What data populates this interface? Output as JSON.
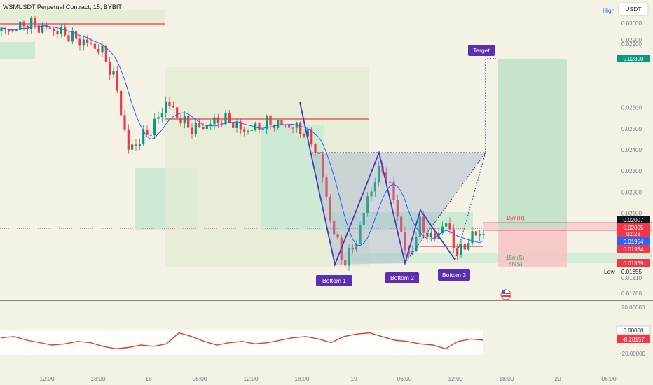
{
  "header": {
    "symbol_title": "WSMUSDT Perpetual Contract, 15, BYBIT",
    "high_label": "High",
    "currency_button": "USDT",
    "low_label": "Low"
  },
  "pattern": {
    "target_label": "Target",
    "bottoms": [
      "Bottom 1",
      "Bottom 2",
      "Bottom 3"
    ],
    "level_labels": [
      "15m(R)",
      "15m(S)",
      "4h(S)"
    ]
  },
  "chart_data": [
    {
      "type": "candlestick",
      "title": "WSMUSDT Perpetual Contract, 15, BYBIT",
      "y_axis_ticks": [
        "0.03000",
        "0.02900",
        "0.02600",
        "0.02500",
        "0.02400",
        "0.02300",
        "0.02200",
        "0.02100",
        "0.01810",
        "0.01760"
      ],
      "price_badges": [
        {
          "value": "0.02800",
          "color": "#089981"
        },
        {
          "value": "0.02007",
          "color": "#131722"
        },
        {
          "value": "0.02005",
          "sub": "02:23",
          "color": "#f23645"
        },
        {
          "value": "0.01954",
          "color": "#2962ff"
        },
        {
          "value": "0.01934",
          "color": "#f23645"
        },
        {
          "value": "0.01869",
          "color": "#f23645"
        }
      ],
      "low_value": "0.01855",
      "x_axis_ticks": [
        "12:00",
        "18:00",
        "18",
        "06:00",
        "12:00",
        "18:00",
        "19",
        "06:00",
        "12:00",
        "18:00",
        "20",
        "06:00"
      ],
      "series": [
        {
          "values": [
            0.0296,
            0.0297,
            0.03,
            0.0298,
            0.0297,
            0.0295,
            0.0292,
            0.029,
            0.0286,
            0.0272,
            0.024,
            0.0245,
            0.0251,
            0.0263,
            0.0255,
            0.025,
            0.0251,
            0.0254,
            0.0254,
            0.0249,
            0.025,
            0.0253,
            0.0252,
            0.0251,
            0.0248,
            0.0238,
            0.0205,
            0.0186,
            0.0197,
            0.022,
            0.0232,
            0.0216,
            0.0187,
            0.0205,
            0.0197,
            0.0206,
            0.019,
            0.0199,
            0.0201
          ]
        }
      ],
      "colors": {
        "up": "#089981",
        "down": "#f23645",
        "ma_line": "#2962ff",
        "pattern_line": "#4b3ab0"
      }
    },
    {
      "type": "line",
      "y_axis_ticks": [
        "20.00000",
        "-20.00000"
      ],
      "badges": [
        {
          "value": "0.00000",
          "color": "#ffffff"
        },
        {
          "value": "-8.28157",
          "color": "#f23645"
        }
      ],
      "series": [
        {
          "values": [
            -6,
            -5,
            -8,
            -10,
            -12,
            -11,
            -9,
            -10,
            -13,
            -15,
            -14,
            -12,
            -13,
            -11,
            -2,
            -5,
            -9,
            -12,
            -10,
            -9,
            -11,
            -10,
            -8,
            -6,
            -5,
            -7,
            -10,
            -5,
            -3,
            -2,
            -5,
            -8,
            -9,
            -11,
            -12,
            -15,
            -9,
            -7,
            -8
          ]
        }
      ],
      "colors": {
        "line": "#e53935"
      }
    }
  ]
}
